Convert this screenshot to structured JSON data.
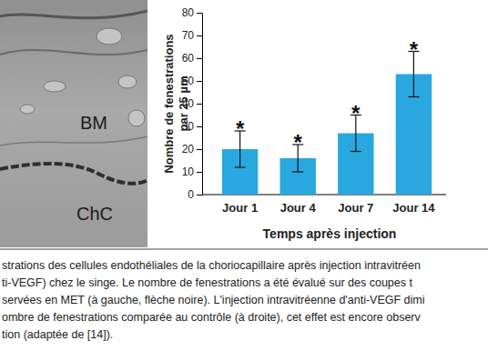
{
  "chart_data": {
    "type": "bar",
    "ylabel": "Nombre de fenestrations\npar 25 µm",
    "xlabel": "Temps après injection",
    "categories": [
      "Jour 1",
      "Jour 4",
      "Jour 7",
      "Jour 14"
    ],
    "values": [
      20,
      16,
      27,
      53
    ],
    "errors": [
      8,
      6,
      8,
      10
    ],
    "annotations": [
      "*",
      "*",
      "*",
      "*"
    ],
    "color": "#29a8df",
    "ylim": [
      0,
      80
    ],
    "yticks": [
      0,
      10,
      20,
      30,
      40,
      50,
      60,
      70,
      80
    ],
    "grid": false
  },
  "micrograph": {
    "labels": [
      "BM",
      "ChC"
    ]
  },
  "caption": {
    "lines": [
      "strations des cellules endothéliales de la choriocapillaire après injection intravitréen",
      "ti-VEGF) chez le singe. Le nombre de fenestrations a été évalué sur des coupes t",
      "servées en MET (à gauche, flèche noire). L'injection intravitréenne d'anti-VEGF dimi",
      "ombre de fenestrations comparée au contrôle (à droite), cet effet est encore observ",
      "tion (adaptée de [14])."
    ]
  }
}
